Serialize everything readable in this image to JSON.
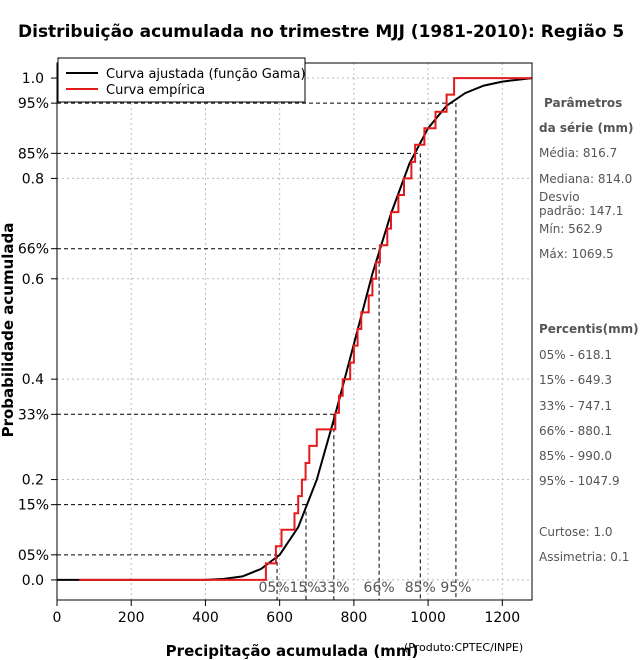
{
  "chart_data": {
    "type": "line",
    "title": "Distribuição acumulada no trimestre MJJ (1981-2010): Região 5",
    "xlabel": "Precipitação acumulada (mm)",
    "ylabel": "Probabilidade acumulada",
    "xlim": [
      0,
      1280
    ],
    "ylim": [
      -0.04,
      1.03
    ],
    "x_ticks": [
      0,
      200,
      400,
      600,
      800,
      1000,
      1200
    ],
    "y_ticks": [
      0.0,
      0.2,
      0.4,
      0.6,
      0.8,
      1.0
    ],
    "y_tick_labels": [
      "0.0",
      "0.2",
      "0.4",
      "0.6",
      "0.8",
      "1.0"
    ],
    "percentile_lines": [
      {
        "prob": 0.05,
        "label": "05%",
        "x": 593
      },
      {
        "prob": 0.15,
        "label": "15%",
        "x": 671
      },
      {
        "prob": 0.33,
        "label": "33%",
        "x": 746
      },
      {
        "prob": 0.66,
        "label": "66%",
        "x": 868
      },
      {
        "prob": 0.85,
        "label": "85%",
        "x": 979
      },
      {
        "prob": 0.95,
        "label": "95%",
        "x": 1075
      }
    ],
    "series": [
      {
        "name": "Curva ajustada (função Gama)",
        "color": "#000000",
        "x": [
          0,
          400,
          450,
          500,
          550,
          600,
          650,
          700,
          750,
          800,
          850,
          900,
          950,
          1000,
          1050,
          1100,
          1150,
          1200,
          1280
        ],
        "y": [
          0.0,
          0.0,
          0.002,
          0.007,
          0.022,
          0.05,
          0.105,
          0.2,
          0.33,
          0.47,
          0.61,
          0.73,
          0.83,
          0.9,
          0.945,
          0.97,
          0.985,
          0.993,
          1.0
        ]
      },
      {
        "name": "Curva empírica",
        "color": "#e41a1c",
        "x": [
          60,
          563,
          590,
          605,
          640,
          650,
          660,
          670,
          680,
          700,
          750,
          760,
          770,
          790,
          800,
          810,
          820,
          840,
          850,
          860,
          870,
          890,
          900,
          920,
          935,
          955,
          965,
          990,
          1020,
          1050,
          1070,
          1280
        ],
        "y": [
          0.0,
          0.033,
          0.067,
          0.1,
          0.133,
          0.167,
          0.2,
          0.233,
          0.267,
          0.3,
          0.333,
          0.367,
          0.4,
          0.433,
          0.467,
          0.5,
          0.533,
          0.567,
          0.6,
          0.633,
          0.667,
          0.7,
          0.733,
          0.767,
          0.8,
          0.833,
          0.867,
          0.9,
          0.933,
          0.967,
          1.0,
          1.0
        ]
      }
    ],
    "legend_position": "top-left"
  },
  "legend": {
    "fitted": "Curva ajustada (função Gama)",
    "empirical": "Curva empírica"
  },
  "colors": {
    "fitted": "#000000",
    "empirical": "#e41a1c",
    "grid": "#bbbbbb"
  },
  "side_panel": {
    "params_title_1": "Parâmetros",
    "params_title_2": "da série (mm)",
    "media": "Média: 816.7",
    "mediana": "Mediana: 814.0",
    "desvio_1": "Desvio",
    "desvio_2": "padrão: 147.1",
    "min": "Mín: 562.9",
    "max": "Máx: 1069.5",
    "percentis_title": "Percentis(mm)",
    "p05": "05% - 618.1",
    "p15": "15% - 649.3",
    "p33": "33% - 747.1",
    "p66": "66% - 880.1",
    "p85": "85% - 990.0",
    "p95": "95% - 1047.9",
    "curtose": "Curtose: 1.0",
    "assimetria": "Assimetria: 0.1"
  },
  "credit": "(Produto:CPTEC/INPE)"
}
